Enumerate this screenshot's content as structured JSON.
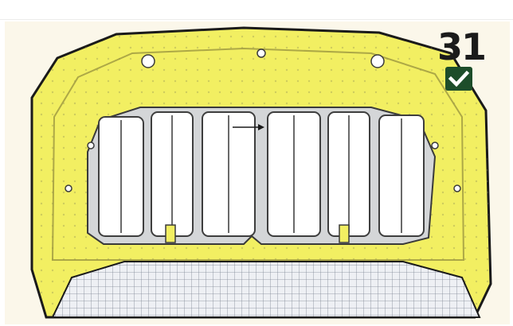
{
  "badge": {
    "number": "31",
    "icon": "check-icon",
    "check_color": "#1d4d2a"
  },
  "diagram": {
    "subject": "hood-inner-panel",
    "highlight_color": "#f2ef62",
    "outline_color": "#1a1a1a"
  }
}
